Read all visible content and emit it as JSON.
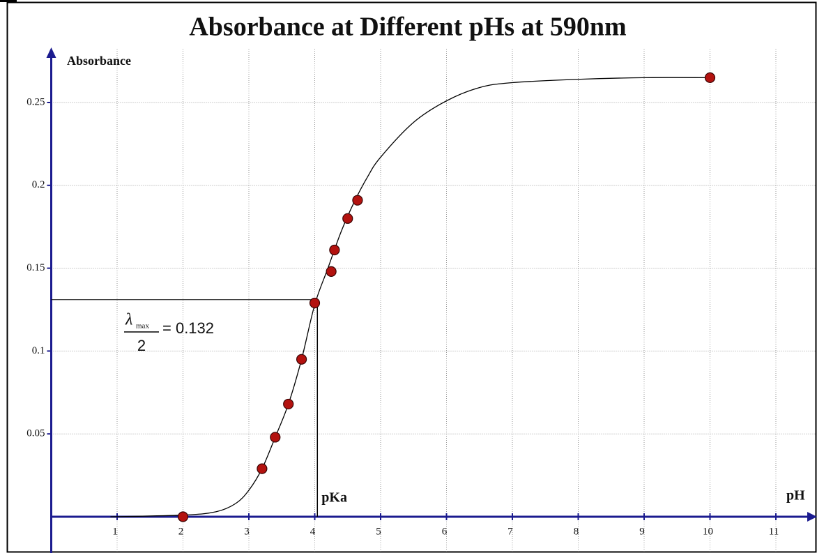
{
  "chart_data": {
    "type": "scatter",
    "title": "Absorbance at Different pHs at 590nm",
    "y_label": "Absorbance",
    "x_label": "pH",
    "xlim": [
      0,
      11.6
    ],
    "ylim": [
      0,
      0.28
    ],
    "xticks": [
      1,
      2,
      3,
      4,
      5,
      6,
      7,
      8,
      9,
      10,
      11
    ],
    "yticks": [
      0.05,
      0.1,
      0.15,
      0.2,
      0.25
    ],
    "grid": true,
    "series": [
      {
        "kind": "points",
        "color": "#b3120f",
        "x": [
          2,
          3.2,
          3.4,
          3.6,
          3.8,
          4.0,
          4.25,
          4.3,
          4.5,
          4.65,
          10
        ],
        "values": [
          0,
          0.029,
          0.048,
          0.068,
          0.095,
          0.129,
          0.148,
          0.161,
          0.18,
          0.191,
          0.265
        ]
      },
      {
        "kind": "curve",
        "color": "#000000",
        "x": [
          0.9,
          2,
          2.5,
          2.8,
          3.0,
          3.2,
          3.4,
          3.6,
          3.8,
          4.0,
          4.2,
          4.4,
          4.6,
          4.8,
          5.0,
          5.5,
          6.0,
          6.5,
          7.0,
          8.0,
          9.0,
          10
        ],
        "values": [
          0,
          0.001,
          0.003,
          0.008,
          0.016,
          0.029,
          0.048,
          0.068,
          0.095,
          0.128,
          0.15,
          0.172,
          0.19,
          0.205,
          0.217,
          0.238,
          0.251,
          0.259,
          0.262,
          0.264,
          0.265,
          0.265
        ]
      }
    ],
    "half_max": {
      "y": 0.131,
      "x": 4.04,
      "numerator": "λ",
      "subscript": "max",
      "denominator": "2",
      "equation": "= 0.132",
      "x_annotation": "pKa"
    }
  }
}
